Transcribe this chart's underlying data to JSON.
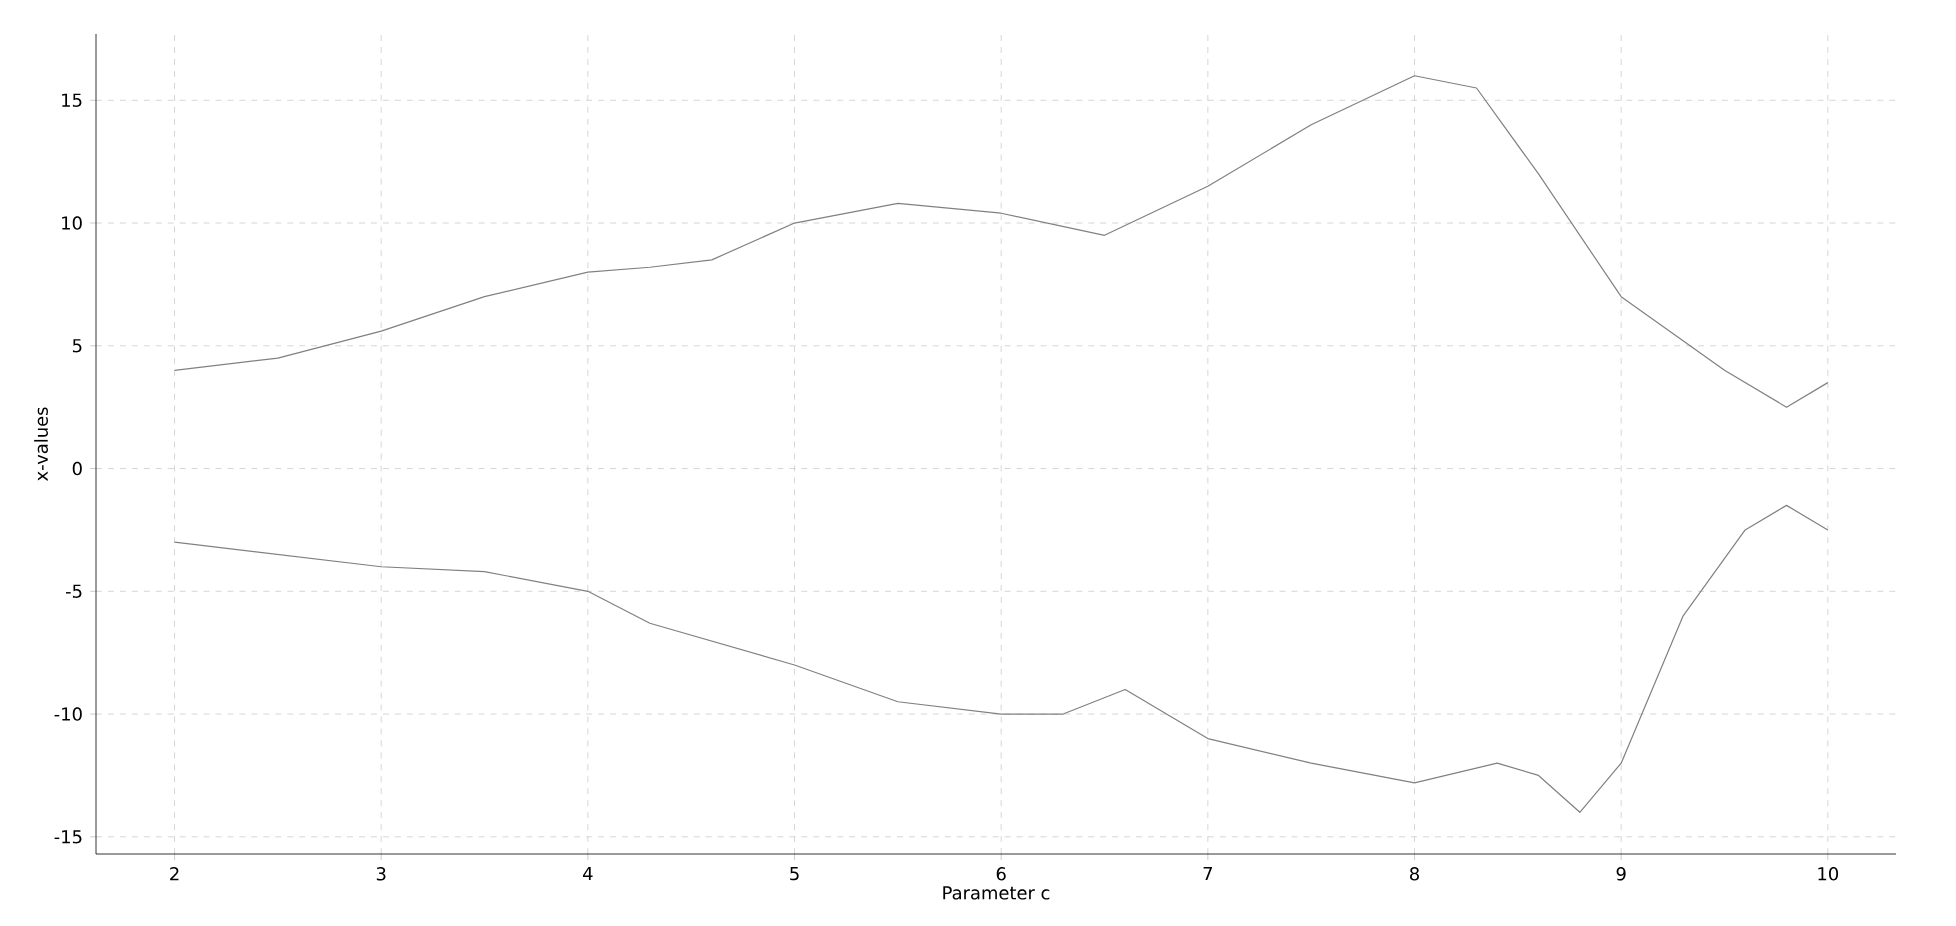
{
  "chart_data": {
    "type": "line",
    "xlabel": "Parameter c",
    "ylabel": "x-values",
    "xlim": [
      1.62,
      10.33
    ],
    "ylim": [
      -15.7,
      17.7
    ],
    "xticks": [
      2,
      3,
      4,
      5,
      6,
      7,
      8,
      9,
      10
    ],
    "yticks": [
      -15,
      -10,
      -5,
      0,
      5,
      10,
      15
    ],
    "grid": true,
    "marker": "none",
    "line_style": "solid",
    "series": [
      {
        "color": "#808080",
        "x": [
          2,
          2.5,
          3,
          3.5,
          4,
          4.3,
          4.6,
          5,
          5.5,
          6,
          6.5,
          7,
          7.5,
          8,
          8.3,
          8.6,
          9,
          9.5,
          9.8,
          10
        ],
        "values": [
          4,
          4.5,
          5.6,
          7,
          8,
          8.2,
          8.5,
          10,
          10.8,
          10.4,
          9.5,
          11.5,
          14,
          16,
          15.5,
          12,
          7,
          4,
          2.5,
          3.5
        ]
      },
      {
        "color": "#808080",
        "x": [
          2,
          2.5,
          3,
          3.5,
          4,
          4.3,
          5,
          5.5,
          6,
          6.3,
          6.6,
          7,
          7.5,
          8,
          8.4,
          8.6,
          8.8,
          9,
          9.3,
          9.6,
          9.8,
          10
        ],
        "values": [
          -3,
          -3.5,
          -4,
          -4.2,
          -5,
          -6.3,
          -8,
          -9.5,
          -10,
          -10,
          -9,
          -11,
          -12,
          -12.8,
          -12,
          -12.5,
          -14,
          -12,
          -6,
          -2.5,
          -1.5,
          -2.5
        ]
      }
    ]
  }
}
